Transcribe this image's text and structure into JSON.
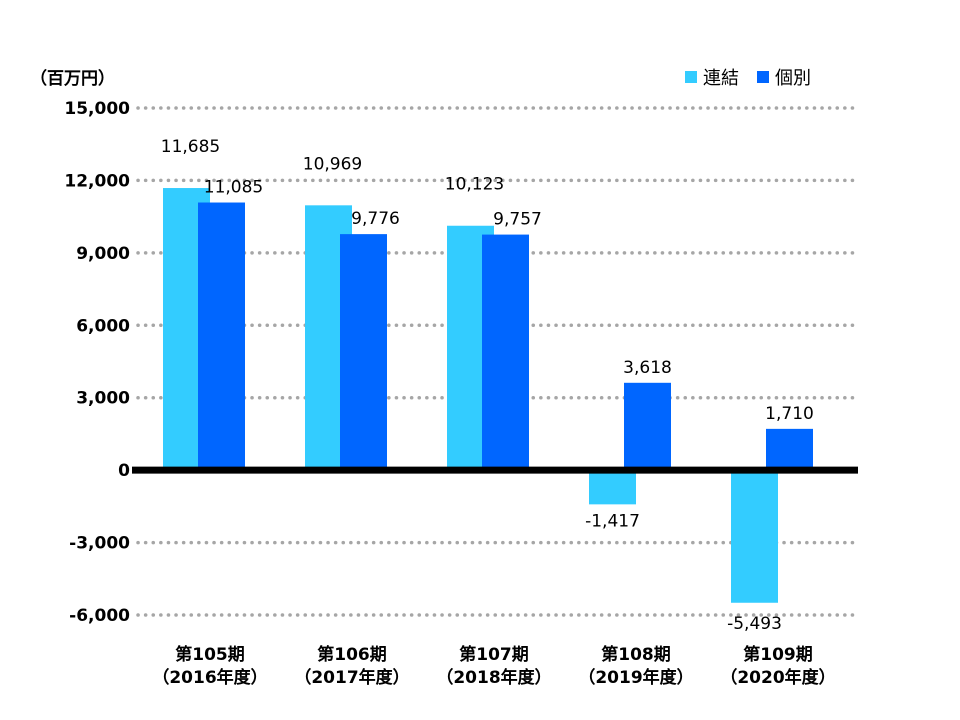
{
  "chart_data": {
    "type": "bar",
    "unit_label": "（百万円）",
    "categories": [
      [
        "第105期",
        "（2016年度）"
      ],
      [
        "第106期",
        "（2017年度）"
      ],
      [
        "第107期",
        "（2018年度）"
      ],
      [
        "第108期",
        "（2019年度）"
      ],
      [
        "第109期",
        "（2020年度）"
      ]
    ],
    "series": [
      {
        "name": "連結",
        "color": "#33ccff",
        "values": [
          11685,
          10969,
          10123,
          -1417,
          -5493
        ],
        "labels": [
          "11,685",
          "10,969",
          "10,123",
          "-1,417",
          "-5,493"
        ]
      },
      {
        "name": "個別",
        "color": "#0066ff",
        "values": [
          11085,
          9776,
          9757,
          3618,
          1710
        ],
        "labels": [
          "11,085",
          "9,776",
          "9,757",
          "3,618",
          "1,710"
        ]
      }
    ],
    "ylim": [
      -6000,
      15000
    ],
    "yticks": [
      15000,
      12000,
      9000,
      6000,
      3000,
      0,
      -3000,
      -6000
    ],
    "ytick_labels": [
      "15,000",
      "12,000",
      "9,000",
      "6,000",
      "3,000",
      "0",
      "-3,000",
      "-6,000"
    ],
    "grid": "dotted horizontal",
    "legend_position": "top-right"
  }
}
